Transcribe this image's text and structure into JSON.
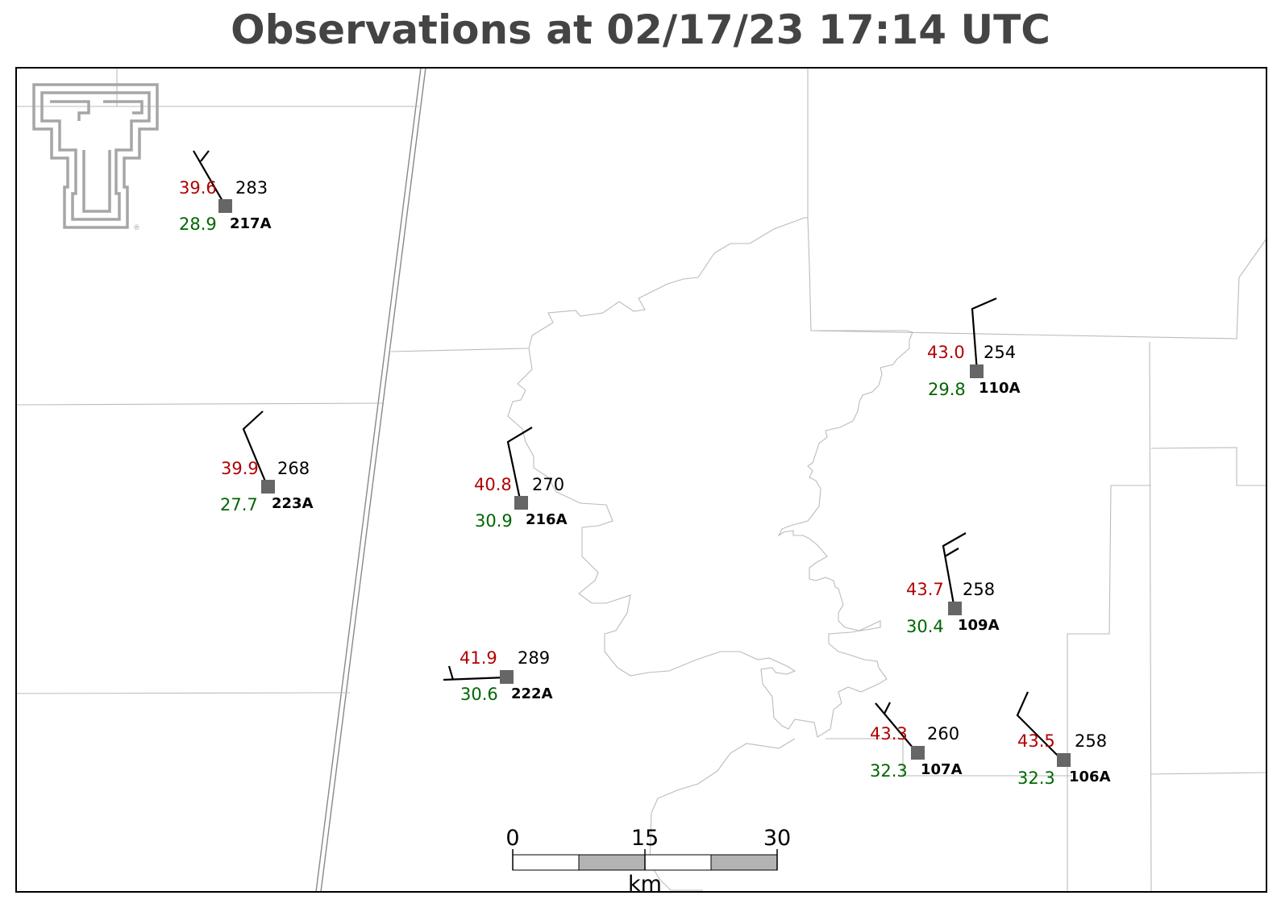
{
  "title": "Observations at 02/17/23 17:14 UTC",
  "scale_bar": {
    "ticks": [
      "0",
      "15",
      "30"
    ],
    "unit": "km"
  },
  "colors": {
    "temperature": "#b30000",
    "dewpoint": "#006600",
    "station_marker": "#666666",
    "title": "#444444",
    "logo": "#a6a6a6"
  },
  "logo": {
    "icon": "double-t-logo-icon"
  },
  "stations": [
    {
      "id": "217A",
      "temp": "39.6",
      "dewpoint": "28.9",
      "pressure": "283"
    },
    {
      "id": "223A",
      "temp": "39.9",
      "dewpoint": "27.7",
      "pressure": "268"
    },
    {
      "id": "216A",
      "temp": "40.8",
      "dewpoint": "30.9",
      "pressure": "270"
    },
    {
      "id": "222A",
      "temp": "41.9",
      "dewpoint": "30.6",
      "pressure": "289"
    },
    {
      "id": "110A",
      "temp": "43.0",
      "dewpoint": "29.8",
      "pressure": "254"
    },
    {
      "id": "109A",
      "temp": "43.7",
      "dewpoint": "30.4",
      "pressure": "258"
    },
    {
      "id": "107A",
      "temp": "43.3",
      "dewpoint": "32.3",
      "pressure": "260"
    },
    {
      "id": "106A",
      "temp": "43.5",
      "dewpoint": "32.3",
      "pressure": "258"
    }
  ]
}
